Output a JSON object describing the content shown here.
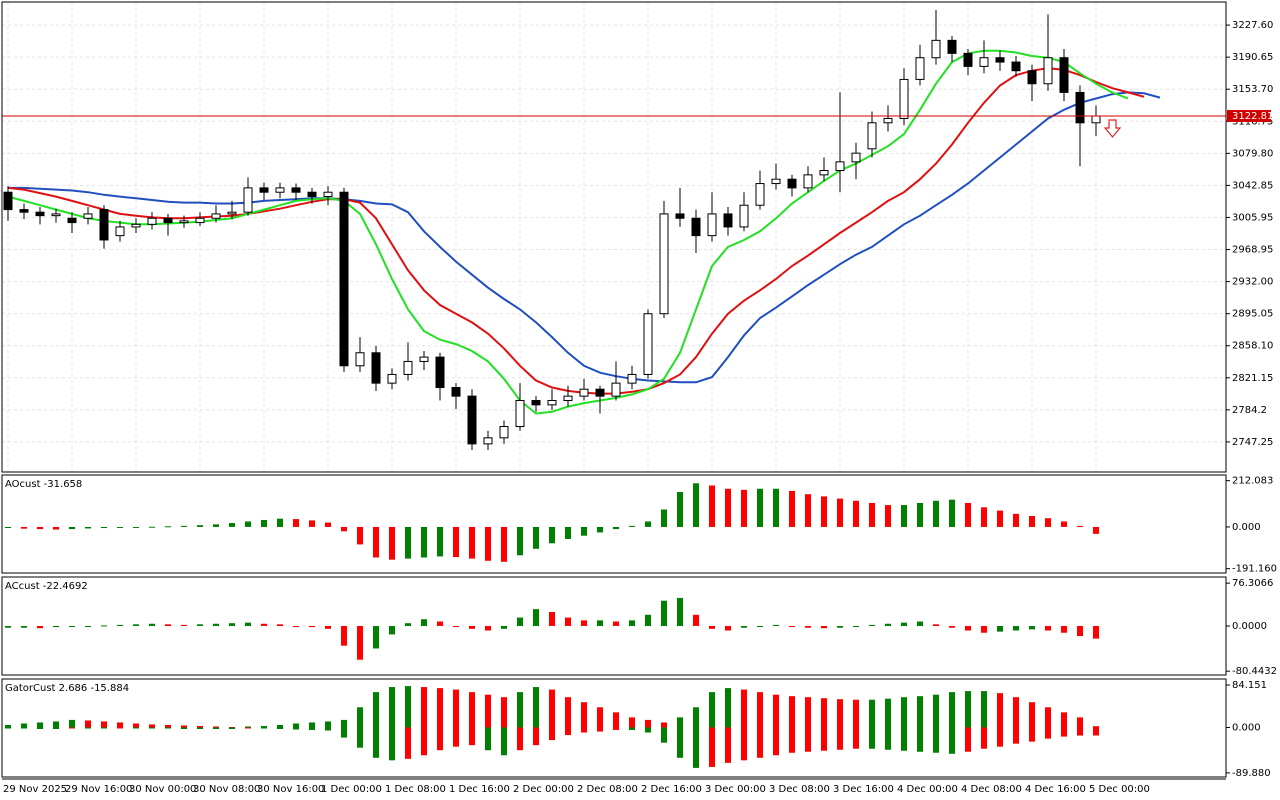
{
  "chart_data": [
    {
      "type": "candlestick",
      "categories": [
        "29 Nov 2025",
        null,
        null,
        null,
        "29 Nov 16:00",
        null,
        null,
        null,
        "30 Nov 00:00",
        null,
        null,
        null,
        "30 Nov 08:00",
        null,
        null,
        null,
        "30 Nov 16:00",
        null,
        null,
        null,
        "1 Dec 00:00",
        null,
        null,
        null,
        "1 Dec 08:00",
        null,
        null,
        null,
        "1 Dec 16:00",
        null,
        null,
        null,
        "2 Dec 00:00",
        null,
        null,
        null,
        "2 Dec 08:00",
        null,
        null,
        null,
        "2 Dec 16:00",
        null,
        null,
        null,
        "3 Dec 00:00",
        null,
        null,
        null,
        "3 Dec 08:00",
        null,
        null,
        null,
        "3 Dec 16:00",
        null,
        null,
        null,
        "4 Dec 00:00",
        null,
        null,
        null,
        "4 Dec 08:00",
        null,
        null,
        null,
        "4 Dec 16:00",
        null,
        null,
        null,
        "5 Dec 00:00",
        null,
        null,
        null,
        null
      ],
      "open": [
        3035,
        3015,
        3012,
        3008,
        3005,
        3005,
        3015,
        2985,
        2995,
        2998,
        3005,
        3000,
        3000,
        3005,
        3010,
        3012,
        3040,
        3035,
        3040,
        3035,
        3030,
        3035,
        2835,
        2850,
        2815,
        2825,
        2840,
        2845,
        2810,
        2800,
        2745,
        2752,
        2765,
        2795,
        2790,
        2795,
        2800,
        2808,
        2800,
        2815,
        2825,
        2895,
        3010,
        3005,
        2985,
        3010,
        2995,
        3020,
        3045,
        3050,
        3040,
        3055,
        3060,
        3070,
        3085,
        3115,
        3120,
        3165,
        3190,
        3210,
        3195,
        3180,
        3190,
        3185,
        3175,
        3160,
        3190,
        3150,
        3115,
        null,
        null,
        null,
        null
      ],
      "high": [
        3042,
        3022,
        3018,
        3016,
        3012,
        3018,
        3020,
        3002,
        3005,
        3012,
        3010,
        3008,
        3012,
        3020,
        3025,
        3052,
        3046,
        3046,
        3045,
        3040,
        3042,
        3040,
        2868,
        2858,
        2832,
        2862,
        2852,
        2850,
        2815,
        2808,
        2760,
        2772,
        2815,
        2800,
        2808,
        2812,
        2820,
        2812,
        2840,
        2835,
        2900,
        3025,
        3040,
        3015,
        3035,
        3018,
        3035,
        3060,
        3068,
        3055,
        3065,
        3075,
        3150,
        3092,
        3128,
        3135,
        3178,
        3205,
        3245,
        3215,
        3200,
        3210,
        3198,
        3192,
        3182,
        3240,
        3200,
        3158,
        3135,
        null,
        null,
        null,
        null
      ],
      "low": [
        3002,
        3004,
        2998,
        3000,
        2988,
        2998,
        2970,
        2978,
        2988,
        2992,
        2985,
        2994,
        2996,
        3000,
        3004,
        3008,
        3026,
        3028,
        3026,
        3022,
        3020,
        2828,
        2828,
        2806,
        2808,
        2818,
        2830,
        2795,
        2785,
        2738,
        2738,
        2745,
        2760,
        2782,
        2784,
        2788,
        2795,
        2780,
        2795,
        2808,
        2820,
        2890,
        2995,
        2965,
        2978,
        2985,
        2990,
        3015,
        3038,
        3030,
        3035,
        3048,
        3035,
        3050,
        3075,
        3105,
        3112,
        3158,
        3182,
        3185,
        3170,
        3172,
        3175,
        3168,
        3140,
        3152,
        3140,
        3065,
        3100,
        null,
        null,
        null,
        null
      ],
      "close": [
        3015,
        3012,
        3008,
        3010,
        3000,
        3010,
        2980,
        2995,
        2998,
        3005,
        3000,
        3002,
        3005,
        3010,
        3012,
        3040,
        3035,
        3040,
        3035,
        3030,
        3035,
        2835,
        2850,
        2815,
        2825,
        2840,
        2845,
        2810,
        2800,
        2745,
        2752,
        2765,
        2795,
        2790,
        2795,
        2800,
        2808,
        2800,
        2815,
        2825,
        2895,
        3010,
        3005,
        2985,
        3010,
        2995,
        3020,
        3045,
        3050,
        3040,
        3055,
        3060,
        3070,
        3080,
        3115,
        3120,
        3165,
        3190,
        3210,
        3195,
        3180,
        3190,
        3185,
        3175,
        3160,
        3190,
        3150,
        3115,
        3122.81,
        null,
        null,
        null,
        null
      ],
      "up_color": "#ffffff",
      "down_color": "#000000",
      "series": [
        {
          "color": "#1f4fbf",
          "values": [
            3040,
            3040,
            3039,
            3038,
            3037,
            3035,
            3032,
            3030,
            3028,
            3026,
            3024,
            3023,
            3023,
            3022,
            3022,
            3023,
            3025,
            3026,
            3027,
            3028,
            3028,
            3027,
            3025,
            3022,
            3021,
            3012,
            2990,
            2972,
            2955,
            2940,
            2925,
            2912,
            2900,
            2885,
            2868,
            2850,
            2835,
            2827,
            2823,
            2820,
            2818,
            2817,
            2816,
            2816,
            2822,
            2845,
            2870,
            2890,
            2902,
            2915,
            2928,
            2940,
            2952,
            2963,
            2972,
            2985,
            2998,
            3008,
            3020,
            3032,
            3045,
            3060,
            3075,
            3090,
            3105,
            3120,
            3130,
            3138,
            3143,
            3148,
            3150,
            3149,
            3144
          ]
        },
        {
          "color": "#e01010",
          "values": [
            3040,
            3038,
            3034,
            3030,
            3025,
            3020,
            3015,
            3010,
            3008,
            3006,
            3005,
            3005,
            3006,
            3007,
            3008,
            3010,
            3013,
            3016,
            3020,
            3024,
            3027,
            3027,
            3023,
            3005,
            2975,
            2945,
            2922,
            2905,
            2895,
            2885,
            2872,
            2855,
            2835,
            2818,
            2810,
            2806,
            2804,
            2803,
            2803,
            2805,
            2808,
            2815,
            2825,
            2845,
            2872,
            2895,
            2910,
            2922,
            2935,
            2950,
            2962,
            2975,
            2988,
            3000,
            3012,
            3025,
            3035,
            3050,
            3068,
            3090,
            3115,
            3138,
            3158,
            3170,
            3175,
            3178,
            3176,
            3170,
            3162,
            3155,
            3150,
            3145,
            null
          ]
        },
        {
          "color": "#22e022",
          "values": [
            3030,
            3025,
            3020,
            3015,
            3010,
            3005,
            3002,
            3000,
            2998,
            2998,
            2999,
            3000,
            3001,
            3003,
            3005,
            3010,
            3015,
            3020,
            3025,
            3027,
            3028,
            3025,
            3010,
            2975,
            2935,
            2900,
            2875,
            2865,
            2860,
            2852,
            2840,
            2820,
            2795,
            2780,
            2782,
            2788,
            2792,
            2795,
            2798,
            2802,
            2808,
            2820,
            2850,
            2900,
            2950,
            2972,
            2980,
            2990,
            3005,
            3022,
            3035,
            3048,
            3060,
            3068,
            3078,
            3088,
            3102,
            3130,
            3160,
            3185,
            3195,
            3198,
            3198,
            3196,
            3192,
            3190,
            3185,
            3172,
            3160,
            3150,
            3143,
            null,
            null
          ]
        }
      ],
      "current_price": 3122.81,
      "current_price_color": "#d00000",
      "ylim": [
        2712.6,
        3254.2
      ],
      "yticks": [
        {
          "value": 3227.6,
          "label": "3227.60"
        },
        3190.65,
        {
          "value": 3153.7,
          "label": "3153.70"
        },
        3116.75,
        {
          "value": 3079.8,
          "label": "3079.80"
        },
        3042.85,
        3005.95,
        2968.95,
        {
          "value": 2932,
          "label": "2932.00"
        },
        2895.05,
        {
          "value": 2858.1,
          "label": "2858.10"
        },
        2821.15,
        2784.2,
        2747.25
      ],
      "grid": true
    },
    {
      "type": "histogram",
      "label": "AOcust -31.658",
      "up_color": "#008000",
      "down_color": "#ff0000",
      "values": [
        -5,
        -8,
        -10,
        -12,
        -10,
        -7,
        -5,
        -3,
        -1,
        1,
        3,
        5,
        8,
        12,
        18,
        25,
        32,
        38,
        36,
        30,
        20,
        -20,
        -80,
        -140,
        -150,
        -145,
        -140,
        -135,
        -138,
        -145,
        -155,
        -160,
        -130,
        -100,
        -75,
        -55,
        -40,
        -25,
        -10,
        5,
        25,
        80,
        160,
        200,
        190,
        175,
        170,
        175,
        175,
        165,
        150,
        140,
        130,
        120,
        110,
        100,
        100,
        110,
        120,
        125,
        110,
        90,
        75,
        60,
        50,
        40,
        25,
        5,
        -31.658
      ],
      "ylim": [
        -211,
        238
      ],
      "yticks": [
        212.083,
        {
          "value": 0,
          "label": "0.000"
        },
        {
          "value": -191.16,
          "label": "-191.160"
        }
      ]
    },
    {
      "type": "histogram",
      "label": "ACcust -22.4692",
      "up_color": "#008000",
      "down_color": "#ff0000",
      "values": [
        -3,
        -3,
        -4,
        -2,
        -1,
        0,
        1,
        2,
        3,
        4,
        3,
        2,
        3,
        4,
        5,
        6,
        4,
        3,
        0,
        -2,
        -5,
        -35,
        -60,
        -40,
        -15,
        5,
        12,
        8,
        0,
        -5,
        -8,
        -5,
        15,
        30,
        25,
        15,
        10,
        10,
        8,
        10,
        20,
        45,
        50,
        20,
        -5,
        -8,
        -3,
        0,
        2,
        0,
        -3,
        -4,
        -3,
        0,
        2,
        4,
        6,
        8,
        3,
        -3,
        -8,
        -12,
        -10,
        -8,
        -6,
        -8,
        -12,
        -18,
        -22.4692
      ],
      "ylim": [
        -87.2,
        87.2
      ],
      "yticks": [
        76.3066,
        {
          "value": 0,
          "label": "0.0000"
        },
        -80.4432
      ]
    },
    {
      "type": "gator",
      "label": "GatorCust 2.686 -15.884",
      "up_color": "#008000",
      "down_color": "#ff0000",
      "upper": [
        5,
        8,
        10,
        12,
        15,
        14,
        12,
        10,
        8,
        6,
        5,
        4,
        3,
        2,
        1,
        2,
        3,
        5,
        8,
        10,
        12,
        15,
        40,
        70,
        80,
        82,
        80,
        78,
        75,
        70,
        65,
        60,
        70,
        80,
        75,
        60,
        50,
        40,
        30,
        20,
        15,
        10,
        20,
        40,
        70,
        78,
        75,
        70,
        65,
        62,
        60,
        58,
        56,
        55,
        55,
        57,
        60,
        62,
        65,
        70,
        72,
        72,
        68,
        60,
        50,
        40,
        30,
        20,
        2.686
      ],
      "lower": [
        -2,
        -2,
        -3,
        -3,
        -2,
        -2,
        -2,
        -1,
        -1,
        -2,
        -2,
        -3,
        -3,
        -3,
        -3,
        -2,
        -2,
        -3,
        -4,
        -5,
        -6,
        -20,
        -40,
        -60,
        -65,
        -62,
        -55,
        -45,
        -38,
        -35,
        -45,
        -55,
        -45,
        -35,
        -25,
        -15,
        -10,
        -8,
        -5,
        -5,
        -10,
        -30,
        -60,
        -80,
        -78,
        -70,
        -65,
        -60,
        -55,
        -50,
        -48,
        -46,
        -44,
        -42,
        -42,
        -44,
        -46,
        -48,
        -50,
        -52,
        -48,
        -42,
        -38,
        -32,
        -28,
        -22,
        -18,
        -16,
        -15.884
      ],
      "ylim": [
        -98,
        96
      ],
      "yticks": [
        84.151,
        {
          "value": 0,
          "label": "0.000"
        },
        {
          "value": -89.88,
          "label": "-89.880"
        }
      ]
    }
  ]
}
